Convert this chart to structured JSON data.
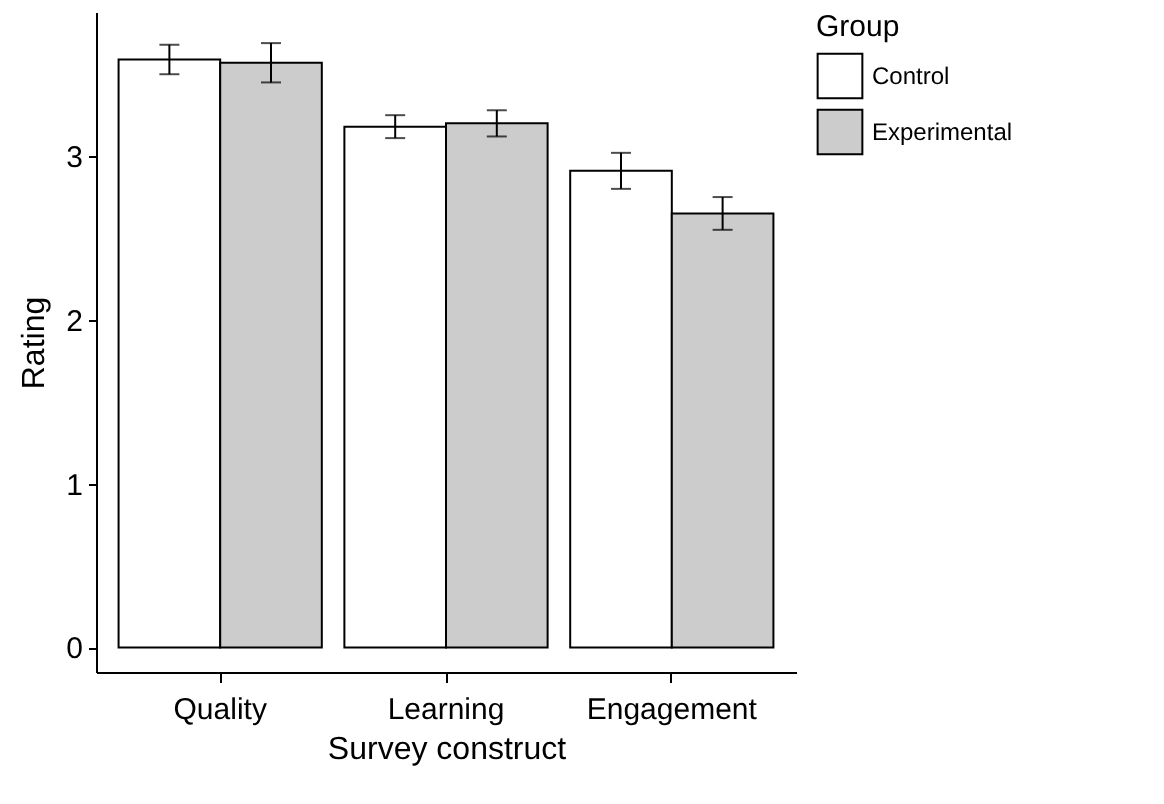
{
  "chart_data": {
    "type": "bar",
    "xlabel": "Survey construct",
    "ylabel": "Rating",
    "legend_title": "Group",
    "categories": [
      "Quality",
      "Learning",
      "Engagement"
    ],
    "series": [
      {
        "name": "Control",
        "color": "#ffffff",
        "values": [
          3.59,
          3.18,
          2.91
        ],
        "errors": [
          0.09,
          0.07,
          0.11
        ]
      },
      {
        "name": "Experimental",
        "color": "#cccccc",
        "values": [
          3.57,
          3.2,
          2.65
        ],
        "errors": [
          0.12,
          0.08,
          0.1
        ]
      }
    ],
    "ylim": [
      -0.15,
      3.88
    ],
    "yticks": [
      0,
      1,
      2,
      3
    ],
    "grid": false,
    "legend": "right"
  }
}
